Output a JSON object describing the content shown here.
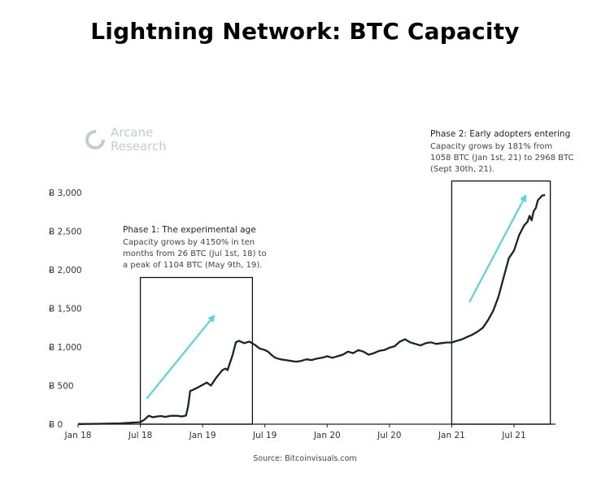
{
  "title": "Lightning Network: BTC Capacity",
  "logo": {
    "line1": "Arcane",
    "line2": "Research"
  },
  "source": "Source: Bitcoinvisuals.com",
  "colors": {
    "line": "#1a2130",
    "arrow": "#5dd3d3",
    "logo": "#c4ccd0"
  },
  "chart_data": {
    "type": "line",
    "title": "Lightning Network: BTC Capacity",
    "xlabel": "",
    "ylabel": "",
    "xlim_months": [
      0,
      46
    ],
    "ylim": [
      0,
      3000
    ],
    "x_ticks": [
      {
        "m": 0,
        "label": "Jan 18"
      },
      {
        "m": 6,
        "label": "Jul 18"
      },
      {
        "m": 12,
        "label": "Jan 19"
      },
      {
        "m": 18,
        "label": "Jul 19"
      },
      {
        "m": 24,
        "label": "Jan 20"
      },
      {
        "m": 30,
        "label": "Jul 20"
      },
      {
        "m": 36,
        "label": "Jan 21"
      },
      {
        "m": 42,
        "label": "Jul 21"
      }
    ],
    "y_ticks": [
      {
        "v": 0,
        "label": "Ƀ 0"
      },
      {
        "v": 500,
        "label": "Ƀ 500"
      },
      {
        "v": 1000,
        "label": "Ƀ 1,000"
      },
      {
        "v": 1500,
        "label": "Ƀ 1,500"
      },
      {
        "v": 2000,
        "label": "Ƀ 2,000"
      },
      {
        "v": 2500,
        "label": "Ƀ 2,500"
      },
      {
        "v": 3000,
        "label": "Ƀ 3,000"
      }
    ],
    "series": [
      {
        "name": "BTC Capacity",
        "x_months": [
          0,
          2,
          4,
          5,
          5.5,
          6,
          6.4,
          6.8,
          7.2,
          7.6,
          8,
          8.4,
          8.6,
          9,
          9.6,
          10,
          10.4,
          10.6,
          10.8,
          11,
          11.3,
          11.6,
          12,
          12.4,
          12.8,
          13.1,
          13.3,
          13.6,
          13.9,
          14.2,
          14.4,
          14.6,
          14.9,
          15.2,
          15.5,
          16,
          16.5,
          17,
          17.5,
          18,
          18.3,
          18.6,
          19,
          19.5,
          20,
          20.5,
          21,
          21.5,
          22,
          22.5,
          23,
          23.5,
          24,
          24.5,
          25,
          25.5,
          26,
          26.5,
          27,
          27.5,
          28,
          28.5,
          29,
          29.5,
          30,
          30.5,
          31,
          31.5,
          32,
          32.5,
          33,
          33.5,
          34,
          34.5,
          35,
          35.5,
          36,
          36.5,
          37,
          37.5,
          38,
          38.5,
          39,
          39.5,
          40,
          40.5,
          41,
          41.5,
          42,
          42.5,
          43,
          43.3,
          43.5,
          43.7,
          43.9,
          44.1,
          44.3,
          44.5,
          44.7,
          45
        ],
        "values": [
          2,
          5,
          10,
          18,
          22,
          26,
          60,
          110,
          90,
          100,
          105,
          95,
          100,
          110,
          108,
          100,
          112,
          230,
          430,
          440,
          460,
          480,
          510,
          540,
          500,
          560,
          600,
          650,
          700,
          720,
          700,
          780,
          900,
          1060,
          1080,
          1050,
          1070,
          1030,
          980,
          960,
          940,
          900,
          860,
          840,
          830,
          820,
          810,
          820,
          840,
          830,
          850,
          860,
          880,
          860,
          880,
          900,
          940,
          920,
          960,
          940,
          900,
          920,
          950,
          960,
          990,
          1010,
          1070,
          1100,
          1060,
          1040,
          1020,
          1050,
          1060,
          1040,
          1050,
          1058,
          1058,
          1080,
          1100,
          1130,
          1160,
          1200,
          1250,
          1350,
          1470,
          1650,
          1900,
          2150,
          2250,
          2450,
          2580,
          2620,
          2700,
          2640,
          2760,
          2800,
          2900,
          2930,
          2960,
          2968
        ]
      }
    ],
    "annotations": [
      {
        "title": "Phase 1: The experimental age",
        "lines": [
          "Capacity grows by 4150% in ten",
          "months from 26 BTC (Jul 1st, 18) to",
          "a peak of 1104 BTC (May 9th, 19)."
        ],
        "box_months": [
          6,
          16.8
        ],
        "box_top_value": 1900,
        "arrow_from": {
          "m": 6.6,
          "v": 330
        },
        "arrow_to": {
          "m": 13.2,
          "v": 1420
        }
      },
      {
        "title": "Phase 2: Early adopters entering",
        "lines": [
          "Capacity grows by 181% from",
          "1058 BTC (Jan 1st, 21) to 2968 BTC",
          "(Sept 30th, 21)."
        ],
        "box_months": [
          36,
          45.5
        ],
        "box_top_value": 3150,
        "arrow_from": {
          "m": 37.7,
          "v": 1580
        },
        "arrow_to": {
          "m": 43.2,
          "v": 2980
        }
      }
    ]
  }
}
